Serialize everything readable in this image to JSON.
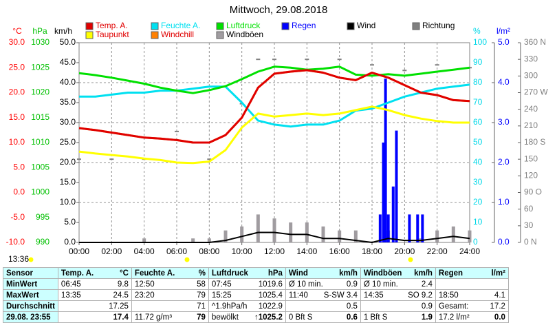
{
  "chart_data": {
    "type": "line",
    "title": "Mittwoch, 29.08.2018",
    "x": [
      0,
      1,
      2,
      3,
      4,
      5,
      6,
      7,
      8,
      9,
      10,
      11,
      12,
      13,
      14,
      15,
      16,
      17,
      18,
      19,
      20,
      21,
      22,
      23,
      24
    ],
    "xlim": [
      0,
      24
    ],
    "xticks": [
      {
        "value": 0,
        "label": "00:00"
      },
      {
        "value": 2,
        "label": "02:00"
      },
      {
        "value": 4,
        "label": "04:00"
      },
      {
        "value": 6,
        "label": "06:00"
      },
      {
        "value": 8,
        "label": "08:00"
      },
      {
        "value": 10,
        "label": "10:00"
      },
      {
        "value": 12,
        "label": "12:00"
      },
      {
        "value": 14,
        "label": "14:00"
      },
      {
        "value": 16,
        "label": "16:00"
      },
      {
        "value": 18,
        "label": "18:00"
      },
      {
        "value": 20,
        "label": "20:00"
      },
      {
        "value": 22,
        "label": "22:00"
      },
      {
        "value": 24,
        "label": "24:00"
      }
    ],
    "axes": [
      {
        "unit": "°C",
        "color": "#ff0000",
        "lim": [
          -10,
          30
        ],
        "ticks": [
          {
            "value": 30,
            "label": "30.0"
          },
          {
            "value": 25,
            "label": "25.0"
          },
          {
            "value": 20,
            "label": "20.0"
          },
          {
            "value": 15,
            "label": "15.0"
          },
          {
            "value": 10,
            "label": "10.0"
          },
          {
            "value": 5,
            "label": "5.0"
          },
          {
            "value": 0,
            "label": "0.0"
          },
          {
            "value": -5,
            "label": "-5.0"
          },
          {
            "value": -10,
            "label": "-10.0"
          }
        ]
      },
      {
        "unit": "hPa",
        "color": "#00c000",
        "lim": [
          990,
          1030
        ],
        "ticks": [
          1030,
          1025,
          1020,
          1015,
          1010,
          1005,
          1000,
          995,
          990
        ]
      },
      {
        "unit": "km/h",
        "color": "#000000",
        "lim": [
          0,
          50
        ],
        "ticks": [
          {
            "value": 50,
            "label": "50.0"
          },
          {
            "value": 45,
            "label": "45.0"
          },
          {
            "value": 40,
            "label": "40.0"
          },
          {
            "value": 35,
            "label": "35.0"
          },
          {
            "value": 30,
            "label": "30.0"
          },
          {
            "value": 25,
            "label": "25.0"
          },
          {
            "value": 20,
            "label": "20.0"
          },
          {
            "value": 15,
            "label": "15.0"
          },
          {
            "value": 10,
            "label": "10.0"
          },
          {
            "value": 5,
            "label": "5.0"
          },
          {
            "value": 0,
            "label": "0.0"
          }
        ]
      },
      {
        "unit": "%",
        "color": "#00d8e8",
        "lim": [
          0,
          100
        ],
        "ticks": [
          100,
          90,
          80,
          70,
          60,
          50,
          40,
          30,
          20,
          10,
          0
        ]
      },
      {
        "unit": "l/m²",
        "color": "#0000ff",
        "lim": [
          0,
          5
        ],
        "grid": true,
        "ticks": [
          {
            "value": 5,
            "label": "5.0"
          },
          {
            "value": 4,
            "label": "4.0"
          },
          {
            "value": 3,
            "label": "3.0"
          },
          {
            "value": 2,
            "label": "2.0"
          },
          {
            "value": 1,
            "label": "1.0"
          },
          {
            "value": 0,
            "label": "0.0"
          }
        ]
      },
      {
        "color": "#808080",
        "lim": [
          0,
          360
        ],
        "ticks": [
          {
            "value": 360,
            "label": "360 N"
          },
          {
            "value": 330,
            "label": "330"
          },
          {
            "value": 300,
            "label": "300"
          },
          {
            "value": 270,
            "label": "270 W"
          },
          {
            "value": 240,
            "label": "240"
          },
          {
            "value": 210,
            "label": "210"
          },
          {
            "value": 180,
            "label": "180 S"
          },
          {
            "value": 150,
            "label": "150"
          },
          {
            "value": 120,
            "label": "120"
          },
          {
            "value": 90,
            "label": "90 O"
          },
          {
            "value": 60,
            "label": "60"
          },
          {
            "value": 30,
            "label": "30"
          },
          {
            "value": 0,
            "label": "0 N"
          }
        ]
      }
    ],
    "series": [
      {
        "name": "Temp. A.",
        "color": "#e00000",
        "axis": 0,
        "style": "line",
        "values": [
          12.9,
          12.5,
          12.0,
          11.5,
          11.0,
          10.8,
          10.5,
          10.0,
          10.0,
          11.5,
          15.0,
          21.0,
          23.8,
          24.2,
          24.5,
          24.0,
          23.0,
          22.5,
          24.0,
          23.0,
          21.5,
          20.0,
          19.5,
          18.5,
          18.3
        ]
      },
      {
        "name": "Feuchte A.",
        "color": "#00e0f0",
        "axis": 3,
        "style": "line",
        "values": [
          73,
          73,
          74,
          75,
          75,
          76,
          76,
          77,
          78,
          78,
          70,
          61,
          59,
          58,
          59,
          59,
          61,
          66,
          67,
          70,
          73,
          75,
          77,
          78,
          79
        ]
      },
      {
        "name": "Luftdruck",
        "color": "#00e000",
        "axis": 1,
        "style": "line",
        "values": [
          1023.9,
          1023.5,
          1023.0,
          1022.4,
          1021.8,
          1021.0,
          1020.4,
          1019.9,
          1020.5,
          1021.3,
          1022.7,
          1024.2,
          1025.2,
          1025.0,
          1024.6,
          1024.8,
          1025.2,
          1023.6,
          1023.4,
          1023.7,
          1023.4,
          1023.8,
          1024.2,
          1024.6,
          1025.0
        ]
      },
      {
        "name": "Regen",
        "color": "#0000ff",
        "axis": 4,
        "style": "bar",
        "x": [
          18.5,
          18.7,
          18.83,
          19.0,
          19.3,
          19.5,
          20.3,
          20.8,
          21.1
        ],
        "values": [
          0.7,
          2.5,
          4.1,
          0.7,
          1.4,
          2.8,
          0.7,
          0.7,
          0.7
        ]
      },
      {
        "name": "Wind",
        "color": "#000000",
        "axis": 2,
        "style": "line",
        "values": [
          0,
          0,
          0,
          0,
          0,
          0,
          0,
          0,
          0,
          0.5,
          1.5,
          2.5,
          2.5,
          2,
          2,
          1,
          1,
          0.5,
          0,
          1,
          0.5,
          0.5,
          1,
          1.5,
          1
        ]
      },
      {
        "name": "Richtung",
        "color": "#808080",
        "axis": 5,
        "style": "dots",
        "x": [
          0,
          2,
          4,
          6,
          8,
          10,
          11,
          12,
          14,
          16,
          18,
          20,
          22,
          24
        ],
        "values": [
          150,
          150,
          150,
          200,
          150,
          250,
          330,
          330,
          330,
          330,
          320,
          310,
          320,
          315
        ]
      },
      {
        "name": "Taupunkt",
        "color": "#ffff00",
        "axis": 0,
        "style": "line",
        "values": [
          8.2,
          7.8,
          7.5,
          7.2,
          6.8,
          6.5,
          6.0,
          5.9,
          6.2,
          8.5,
          13.0,
          15.8,
          15.2,
          15.5,
          15.8,
          15.5,
          15.8,
          16.5,
          17.2,
          16.5,
          15.5,
          14.8,
          14.3,
          14.0,
          14.0
        ]
      },
      {
        "name": "Windchill",
        "color": "#ff8000",
        "axis": 0,
        "style": "line",
        "values": [
          12.9,
          12.5,
          12.0,
          11.5,
          11.0,
          10.8,
          10.5,
          10.0,
          10.0,
          11.5,
          15.0,
          21.0,
          23.8,
          24.2,
          24.5,
          24.0,
          23.0,
          22.5,
          24.0,
          23.0,
          21.5,
          20.0,
          19.5,
          18.5,
          18.3
        ]
      },
      {
        "name": "Windböen",
        "color": "#a09ca0",
        "axis": 2,
        "style": "bar",
        "values": [
          0,
          0,
          0,
          0,
          1,
          0,
          0,
          1,
          1,
          3,
          4,
          7,
          6,
          5,
          5,
          4,
          3,
          3,
          0,
          3,
          0,
          1,
          3,
          4,
          3
        ]
      }
    ]
  },
  "current_time": "13:36",
  "table": {
    "header": [
      {
        "left": "Sensor"
      },
      {
        "left": "Temp. A.",
        "right": "°C"
      },
      {
        "left": "Feuchte A.",
        "right": "%"
      },
      {
        "left": "Luftdruck",
        "right": "hPa"
      },
      {
        "left": "Wind",
        "right": "km/h"
      },
      {
        "left": "Windböen",
        "right": "km/h"
      },
      {
        "left": "Regen",
        "right": "l/m²"
      }
    ],
    "rows": [
      [
        {
          "left": "MinWert"
        },
        {
          "left": "06:45",
          "right": "9.8"
        },
        {
          "left": "12:50",
          "right": "58"
        },
        {
          "left": "07:45",
          "right": "1019.6"
        },
        {
          "left": "Ø 10 min.",
          "right": "0.9"
        },
        {
          "left": "Ø 10 min.",
          "right": "2.4"
        },
        {}
      ],
      [
        {
          "left": "MaxWert"
        },
        {
          "left": "13:35",
          "right": "24.5"
        },
        {
          "left": "23:20",
          "right": "79"
        },
        {
          "left": "15:25",
          "right": "1025.4"
        },
        {
          "left": "11:40",
          "right": "S-SW 3.4"
        },
        {
          "left": "14:35",
          "right": "SO 9.2"
        },
        {
          "left": "18:50",
          "right": "4.1"
        }
      ],
      [
        {
          "left": "Durchschnitt"
        },
        {
          "right": "17.25"
        },
        {
          "right": "71"
        },
        {
          "left": "^1.9hPa/h",
          "right": "1022.9"
        },
        {
          "right": "0.5"
        },
        {
          "right": "0.9"
        },
        {
          "left": "Gesamt:",
          "right": "17.2"
        }
      ],
      [
        {
          "left": "29.08. 23:55"
        },
        {
          "right": "17.4"
        },
        {
          "left": "11.72 g/m³",
          "right": "79"
        },
        {
          "left": "bewölkt",
          "right": "↑1025.2"
        },
        {
          "left": "0 Bft S",
          "right": "0.6"
        },
        {
          "left": "1 Bft S",
          "right": "1.9"
        },
        {
          "left": "17.2 l/m²",
          "right": "0.0"
        }
      ]
    ]
  }
}
